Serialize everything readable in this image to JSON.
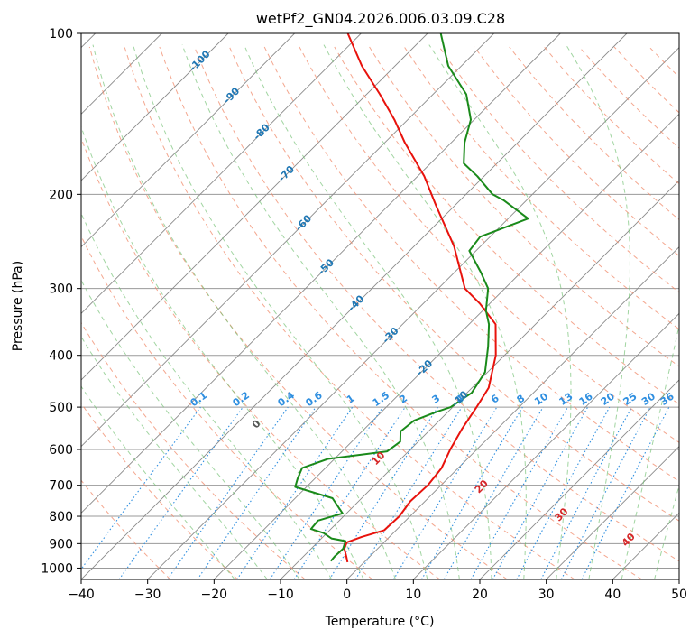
{
  "chart_data": {
    "type": "line",
    "title": "wetPf2_GN04.2026.006.03.09.C28",
    "xlabel": "Temperature (°C)",
    "ylabel": "Pressure (hPa)",
    "xlim": [
      -40,
      50
    ],
    "ylim": [
      1050,
      100
    ],
    "yscale": "log",
    "grid": true,
    "x_ticks": [
      -40,
      -30,
      -20,
      -10,
      0,
      10,
      20,
      30,
      40,
      50
    ],
    "y_ticks": [
      100,
      200,
      300,
      400,
      500,
      600,
      700,
      800,
      900,
      1000
    ],
    "series": [
      {
        "role": "temperature",
        "color": "#e8120c",
        "points": [
          [
            -2.5,
            975
          ],
          [
            -3.6,
            950
          ],
          [
            -5.0,
            920
          ],
          [
            -5.6,
            895
          ],
          [
            -4.2,
            875
          ],
          [
            -1.8,
            850
          ],
          [
            -1.6,
            800
          ],
          [
            -2.2,
            750
          ],
          [
            -2.0,
            700
          ],
          [
            -2.5,
            650
          ],
          [
            -4.0,
            600
          ],
          [
            -5.3,
            550
          ],
          [
            -6.4,
            500
          ],
          [
            -7.5,
            460
          ],
          [
            -11.3,
            400
          ],
          [
            -16.0,
            350
          ],
          [
            -21.5,
            320
          ],
          [
            -26.0,
            300
          ],
          [
            -34.0,
            250
          ],
          [
            -42.8,
            210
          ],
          [
            -49.0,
            185
          ],
          [
            -57.0,
            160
          ],
          [
            -62.0,
            145
          ],
          [
            -68.0,
            130
          ],
          [
            -75.0,
            115
          ],
          [
            -82.0,
            100
          ]
        ]
      },
      {
        "role": "dewpoint",
        "color": "#1a8a1a",
        "points": [
          [
            -5.2,
            970
          ],
          [
            -5.3,
            950
          ],
          [
            -5.2,
            920
          ],
          [
            -6.0,
            890
          ],
          [
            -8.5,
            880
          ],
          [
            -10.5,
            860
          ],
          [
            -13.0,
            845
          ],
          [
            -13.2,
            815
          ],
          [
            -10.6,
            790
          ],
          [
            -14.4,
            740
          ],
          [
            -21.7,
            705
          ],
          [
            -22.6,
            680
          ],
          [
            -23.5,
            650
          ],
          [
            -21.0,
            625
          ],
          [
            -13.2,
            605
          ],
          [
            -12.7,
            580
          ],
          [
            -14.2,
            555
          ],
          [
            -13.8,
            530
          ],
          [
            -11.7,
            510
          ],
          [
            -10.3,
            500
          ],
          [
            -9.3,
            470
          ],
          [
            -10.4,
            430
          ],
          [
            -13.8,
            385
          ],
          [
            -17.0,
            350
          ],
          [
            -19.5,
            330
          ],
          [
            -22.5,
            300
          ],
          [
            -26.0,
            280
          ],
          [
            -31.0,
            255
          ],
          [
            -31.5,
            240
          ],
          [
            -27.0,
            222
          ],
          [
            -33.5,
            205
          ],
          [
            -36.0,
            200
          ],
          [
            -41.0,
            185
          ],
          [
            -45.0,
            175
          ],
          [
            -48.0,
            160
          ],
          [
            -50.5,
            145
          ],
          [
            -55.0,
            130
          ],
          [
            -62.0,
            115
          ],
          [
            -68.0,
            100
          ]
        ]
      }
    ],
    "mixing_ratio_labels": [
      "0.1",
      "0.2",
      "0.4",
      "0.6",
      "1",
      "1.5",
      "2",
      "3",
      "4",
      "6",
      "8",
      "10",
      "13",
      "16",
      "20",
      "25",
      "30",
      "36"
    ],
    "dry_adiabat_labels": [
      "-100",
      "-90",
      "-80",
      "-70",
      "-60",
      "-50",
      "-40",
      "-30",
      "-20",
      "-10"
    ],
    "moist_adiabat_labels": [
      "0",
      "10",
      "20",
      "30",
      "40"
    ]
  },
  "colors": {
    "temperature": "#e8120c",
    "dewpoint": "#1a8a1a",
    "isotherm": "#8a8a8a",
    "isobar": "#9a9a9a",
    "dry_adiabat": "#f08a6a",
    "moist_adiabat": "#6fbf6f",
    "mixing_ratio": "#2f8fe0",
    "dry_label": "#1f77b4",
    "moist_label": "#d62728",
    "mix_label": "#2f8fe0"
  }
}
